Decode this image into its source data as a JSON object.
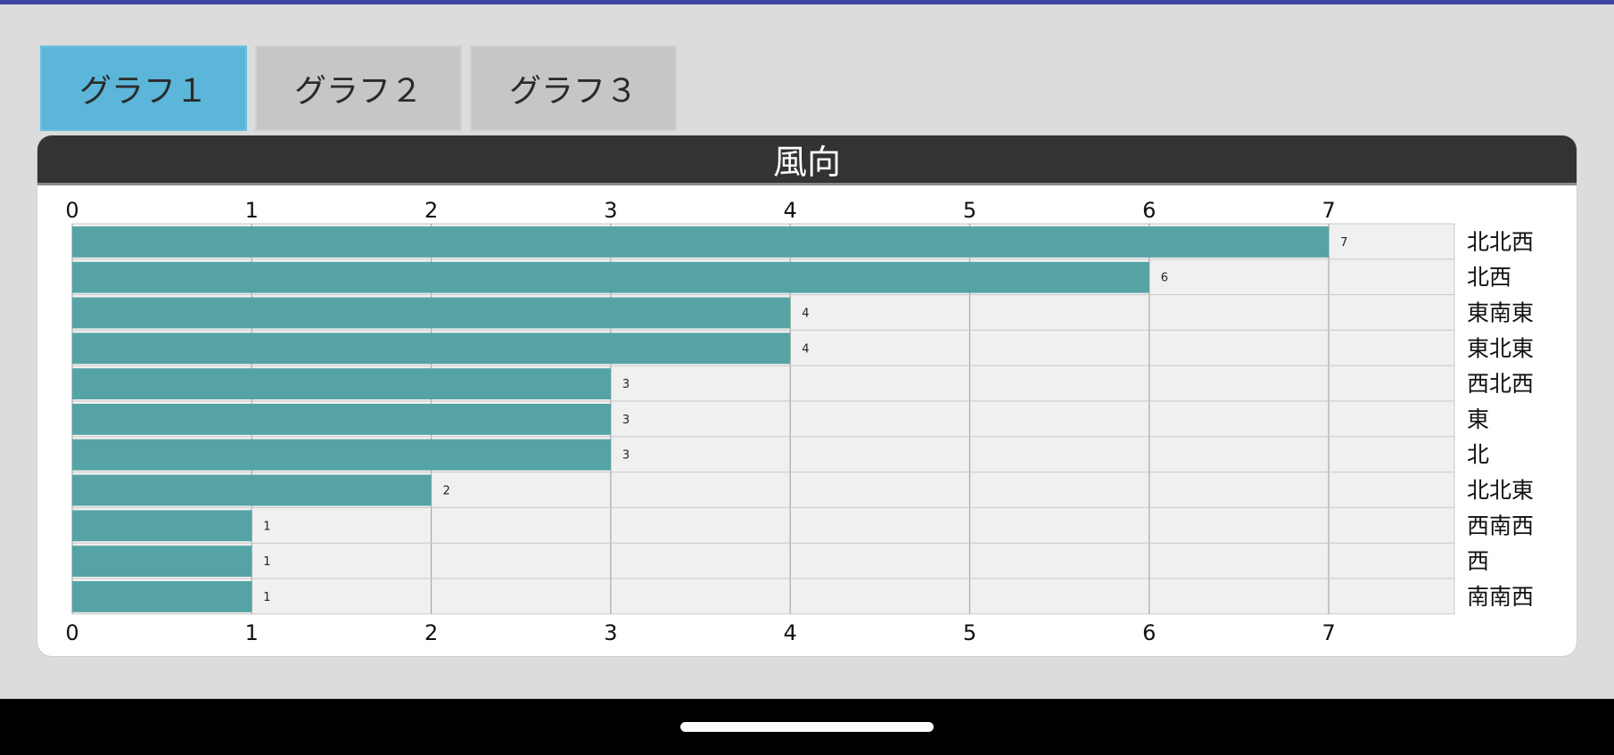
{
  "tabs": [
    {
      "label": "グラフ１",
      "active": true
    },
    {
      "label": "グラフ２",
      "active": false
    },
    {
      "label": "グラフ３",
      "active": false
    }
  ],
  "colors": {
    "bar": "#55a3a5",
    "active_tab": "#5bb6d9",
    "header": "#333333"
  },
  "chart_data": {
    "type": "bar",
    "orientation": "horizontal",
    "title": "風向",
    "categories": [
      "北北西",
      "北西",
      "東南東",
      "東北東",
      "西北西",
      "東",
      "北",
      "北北東",
      "西南西",
      "西",
      "南南西"
    ],
    "values": [
      7,
      6,
      4,
      4,
      3,
      3,
      3,
      2,
      1,
      1,
      1
    ],
    "xlim": [
      0,
      7.7
    ],
    "xticks": [
      0,
      1,
      2,
      3,
      4,
      5,
      6,
      7
    ],
    "grid": true,
    "category_labels_position": "right",
    "data_labels": true
  }
}
